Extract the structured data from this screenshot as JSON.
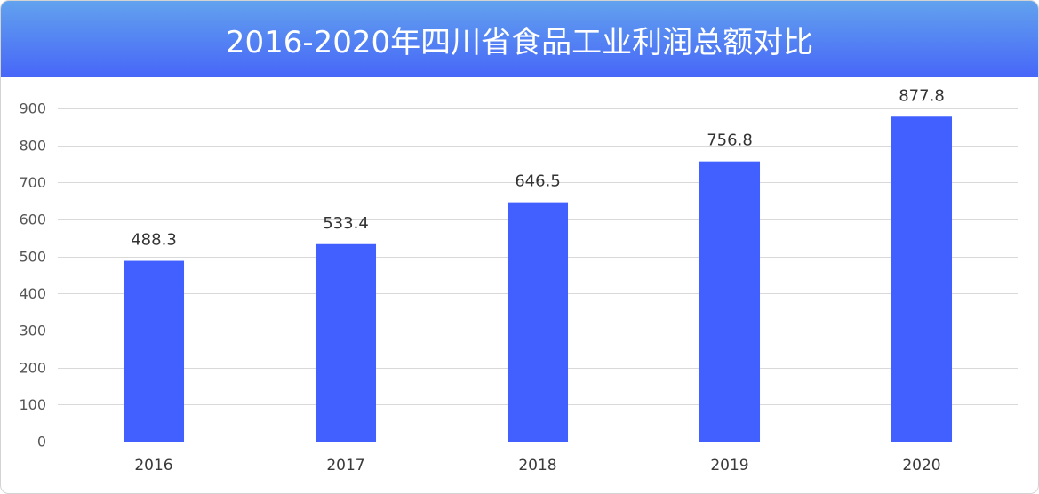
{
  "colors": {
    "header_gradient_top": "#62a2ee",
    "header_gradient_bottom": "#4766f8",
    "bar": "#4160ff",
    "grid": "#d9d9d9",
    "axis": "#c6c6c6",
    "title_text": "#ffffff"
  },
  "chart_data": {
    "type": "bar",
    "title": "2016-2020年四川省食品工业利润总额对比",
    "categories": [
      "2016",
      "2017",
      "2018",
      "2019",
      "2020"
    ],
    "values": [
      488.3,
      533.4,
      646.5,
      756.8,
      877.8
    ],
    "ylim": [
      0,
      900
    ],
    "yticks": [
      0,
      100,
      200,
      300,
      400,
      500,
      600,
      700,
      800,
      900
    ],
    "data_labels": true,
    "grid": true,
    "legend": "none"
  }
}
